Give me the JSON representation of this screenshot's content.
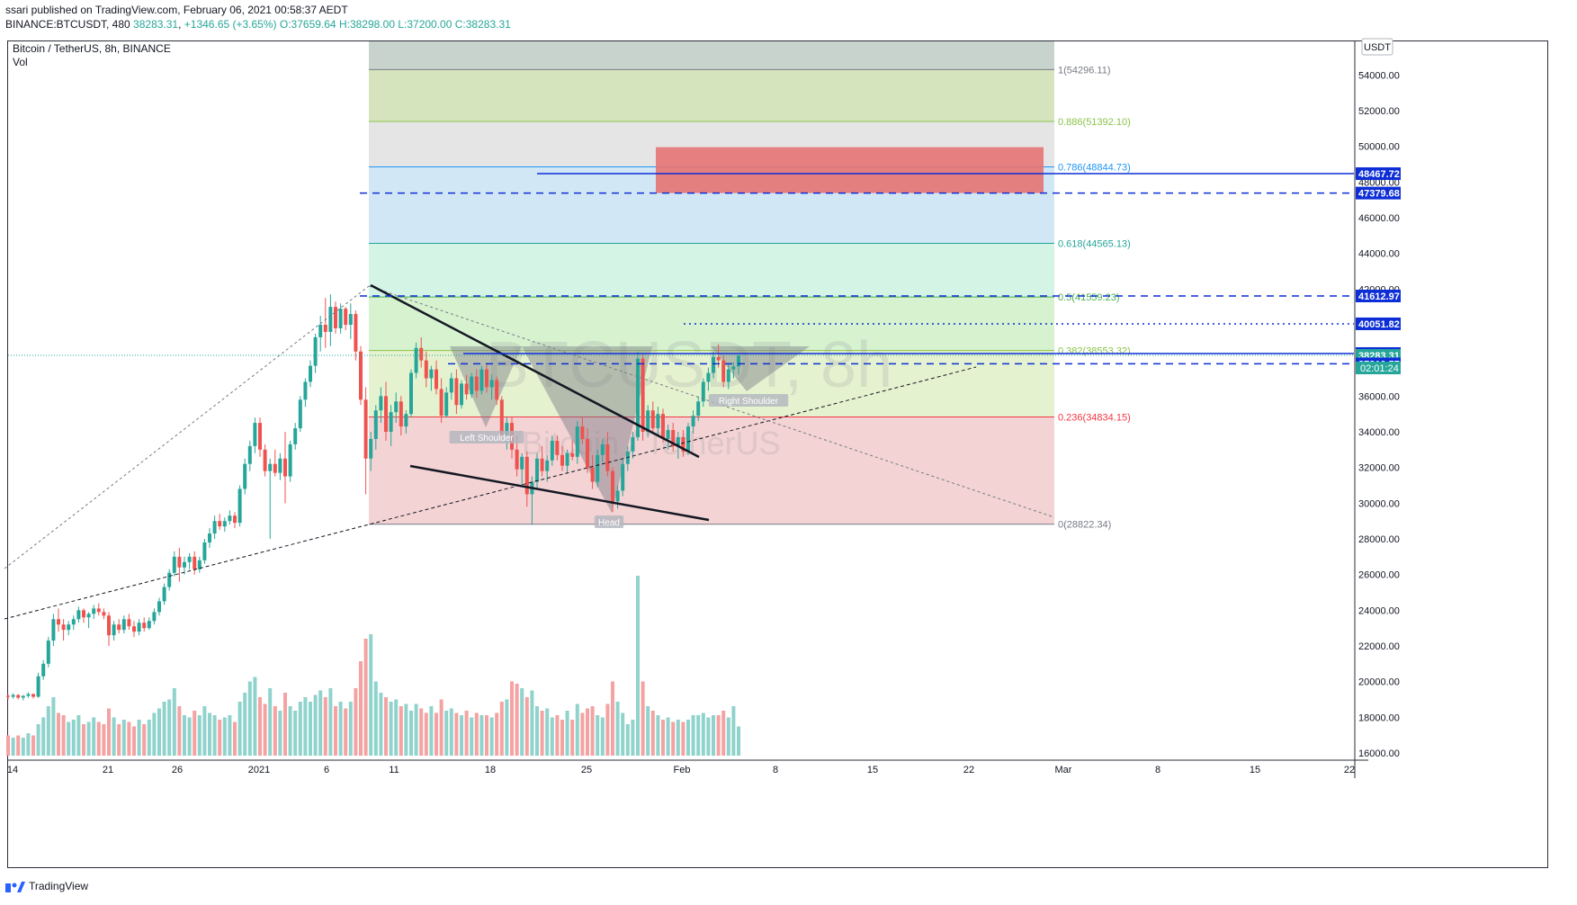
{
  "header": {
    "published": "ssari published on TradingView.com, February 06, 2021 00:58:37 AEDT",
    "symbol_line_prefix": "BINANCE:BTCUSDT, 480",
    "last": "38283.31",
    "change": "+1346.65 (+3.65%)",
    "o": "O:37659.64",
    "h": "H:38298.00",
    "l": "L:37200.00",
    "c": "C:38283.31"
  },
  "footer": {
    "brand": "TradingView"
  },
  "chart_data": {
    "type": "candlestick",
    "title": "Bitcoin / TetherUS, 8h, BINANCE",
    "subtitle": "Vol",
    "currency_label": "USDT",
    "watermark": "BTCUSDT, 8h",
    "watermark_sub": "Bitcoin / TetherUS",
    "y_ticks": [
      16000,
      18000,
      20000,
      22000,
      24000,
      26000,
      28000,
      30000,
      32000,
      34000,
      36000,
      38000,
      40000,
      42000,
      44000,
      46000,
      48000,
      50000,
      52000,
      54000
    ],
    "y_tick_labels": [
      "16000.00",
      "18000.00",
      "20000.00",
      "22000.00",
      "24000.00",
      "26000.00",
      "28000.00",
      "30000.00",
      "32000.00",
      "34000.00",
      "36000.00",
      "38000.00",
      "40000.00",
      "42000.00",
      "44000.00",
      "46000.00",
      "48000.00",
      "50000.00",
      "52000.00",
      "54000.00"
    ],
    "x_labels": [
      "14",
      "21",
      "26",
      "2021",
      "6",
      "11",
      "18",
      "25",
      "Feb",
      "8",
      "15",
      "22",
      "Mar",
      "8",
      "15",
      "22"
    ],
    "price_labels": [
      {
        "value": 48467.72,
        "label": "48467.72",
        "color": "#0d2ed6"
      },
      {
        "value": 47379.68,
        "label": "47379.68",
        "color": "#0d2ed6"
      },
      {
        "value": 41612.97,
        "label": "41612.97",
        "color": "#0d2ed6"
      },
      {
        "value": 40051.82,
        "label": "40051.82",
        "color": "#0d2ed6"
      },
      {
        "value": 38387.83,
        "label": "38387.83",
        "color": "#0d2ed6"
      },
      {
        "value": 38283.31,
        "label": "38283.31",
        "color": "#26a69a"
      },
      {
        "value": 37810.57,
        "label": "37810.57",
        "color": "#0d2ed6"
      }
    ],
    "countdown": "02:01:24",
    "fib_levels": [
      {
        "ratio": "1",
        "value": 54296.11,
        "label": "1(54296.11)",
        "color": "#787b86"
      },
      {
        "ratio": "0.886",
        "value": 51392.1,
        "label": "0.886(51392.10)",
        "color": "#8bc34a"
      },
      {
        "ratio": "0.786",
        "value": 48844.73,
        "label": "0.786(48844.73)",
        "color": "#2196f3"
      },
      {
        "ratio": "0.618",
        "value": 44565.13,
        "label": "0.618(44565.13)",
        "color": "#26a69a"
      },
      {
        "ratio": "0.5",
        "value": 41559.23,
        "label": "0.5(41559.23)",
        "color": "#4caf50"
      },
      {
        "ratio": "0.382",
        "value": 38553.32,
        "label": "0.382(38553.32)",
        "color": "#8bc34a"
      },
      {
        "ratio": "0.236",
        "value": 34834.15,
        "label": "0.236(34834.15)",
        "color": "#f23645"
      },
      {
        "ratio": "0",
        "value": 28822.34,
        "label": "0(28822.34)",
        "color": "#787b86"
      }
    ],
    "pattern_labels": {
      "left_shoulder": "Left Shoulder",
      "head": "Head",
      "right_shoulder": "Right Shoulder"
    },
    "candles": [
      [
        19200,
        19300,
        19000,
        19150
      ],
      [
        19150,
        19350,
        19050,
        19250
      ],
      [
        19250,
        19300,
        19000,
        19100
      ],
      [
        19100,
        19250,
        18950,
        19200
      ],
      [
        19200,
        19400,
        19100,
        19300
      ],
      [
        19300,
        19350,
        19050,
        19150
      ],
      [
        19150,
        20500,
        19100,
        20300
      ],
      [
        20300,
        21200,
        20100,
        21000
      ],
      [
        21000,
        22500,
        20800,
        22300
      ],
      [
        22300,
        23800,
        22000,
        23500
      ],
      [
        23500,
        24100,
        22800,
        23200
      ],
      [
        23200,
        23500,
        22300,
        22900
      ],
      [
        22900,
        23400,
        22600,
        23200
      ],
      [
        23200,
        23700,
        22900,
        23500
      ],
      [
        23500,
        24200,
        23300,
        24000
      ],
      [
        24000,
        24100,
        23300,
        23600
      ],
      [
        23600,
        23900,
        23000,
        23800
      ],
      [
        23800,
        24300,
        23500,
        24100
      ],
      [
        24100,
        24400,
        23700,
        23900
      ],
      [
        23900,
        24100,
        23500,
        23700
      ],
      [
        23700,
        23900,
        22000,
        22600
      ],
      [
        22600,
        23400,
        22300,
        23200
      ],
      [
        23200,
        23500,
        22700,
        22900
      ],
      [
        22900,
        23700,
        22700,
        23500
      ],
      [
        23500,
        23800,
        22900,
        23100
      ],
      [
        23100,
        23400,
        22500,
        22800
      ],
      [
        22800,
        23500,
        22600,
        23300
      ],
      [
        23300,
        23600,
        22800,
        23000
      ],
      [
        23000,
        23600,
        22900,
        23400
      ],
      [
        23400,
        24100,
        23200,
        23900
      ],
      [
        23900,
        24700,
        23700,
        24500
      ],
      [
        24500,
        25500,
        24300,
        25300
      ],
      [
        25300,
        26300,
        25100,
        26100
      ],
      [
        26100,
        27300,
        25900,
        27000
      ],
      [
        27000,
        27500,
        25600,
        26400
      ],
      [
        26400,
        27000,
        26000,
        26700
      ],
      [
        26700,
        27200,
        26300,
        27000
      ],
      [
        27000,
        27300,
        26000,
        26300
      ],
      [
        26300,
        27000,
        26100,
        26800
      ],
      [
        26800,
        28000,
        26600,
        27800
      ],
      [
        27800,
        28600,
        27500,
        28300
      ],
      [
        28300,
        29300,
        28000,
        29000
      ],
      [
        29000,
        29400,
        28500,
        28700
      ],
      [
        28700,
        29200,
        28400,
        29000
      ],
      [
        29000,
        29600,
        28800,
        29300
      ],
      [
        29300,
        29500,
        28600,
        28900
      ],
      [
        28900,
        31000,
        28700,
        30800
      ],
      [
        30800,
        32500,
        30500,
        32200
      ],
      [
        32200,
        33500,
        31800,
        33200
      ],
      [
        33200,
        34800,
        32800,
        34500
      ],
      [
        34500,
        34800,
        32600,
        33000
      ],
      [
        33000,
        33300,
        31500,
        31800
      ],
      [
        31800,
        32500,
        28000,
        32200
      ],
      [
        32200,
        33000,
        31500,
        31700
      ],
      [
        31700,
        32800,
        31300,
        32500
      ],
      [
        32500,
        34000,
        30000,
        31500
      ],
      [
        31500,
        33500,
        31200,
        33300
      ],
      [
        33300,
        34500,
        33000,
        34200
      ],
      [
        34200,
        36000,
        34000,
        35800
      ],
      [
        35800,
        37000,
        35400,
        36800
      ],
      [
        36800,
        38000,
        36500,
        37700
      ],
      [
        37700,
        39500,
        37300,
        39300
      ],
      [
        39300,
        40500,
        38500,
        40000
      ],
      [
        40000,
        41500,
        38700,
        39600
      ],
      [
        39600,
        41700,
        38800,
        41000
      ],
      [
        41000,
        41300,
        39500,
        39800
      ],
      [
        39800,
        41200,
        39500,
        40900
      ],
      [
        40900,
        41000,
        39700,
        40000
      ],
      [
        40000,
        41200,
        39200,
        40600
      ],
      [
        40600,
        40800,
        38000,
        38500
      ],
      [
        38500,
        38800,
        35500,
        35800
      ],
      [
        35800,
        36500,
        30500,
        32500
      ],
      [
        32500,
        34000,
        31800,
        33600
      ],
      [
        33600,
        35500,
        33000,
        35200
      ],
      [
        35200,
        36500,
        34500,
        36000
      ],
      [
        36000,
        36800,
        33500,
        34000
      ],
      [
        34000,
        35500,
        33200,
        35100
      ],
      [
        35100,
        36200,
        34500,
        35700
      ],
      [
        35700,
        36000,
        33800,
        34300
      ],
      [
        34300,
        35200,
        33900,
        35000
      ],
      [
        35000,
        37500,
        34800,
        37300
      ],
      [
        37300,
        39000,
        37000,
        38700
      ],
      [
        38700,
        39300,
        37600,
        38000
      ],
      [
        38000,
        38500,
        36500,
        37000
      ],
      [
        37000,
        37700,
        36300,
        37500
      ],
      [
        37500,
        38000,
        36100,
        36400
      ],
      [
        36400,
        37000,
        34500,
        34900
      ],
      [
        34900,
        36500,
        34800,
        36200
      ],
      [
        36200,
        37300,
        35800,
        37000
      ],
      [
        37000,
        37500,
        35000,
        35500
      ],
      [
        35500,
        36900,
        35300,
        36700
      ],
      [
        36700,
        37200,
        35800,
        36100
      ],
      [
        36100,
        37300,
        35900,
        37100
      ],
      [
        37100,
        37500,
        35900,
        36300
      ],
      [
        36300,
        37700,
        36100,
        37500
      ],
      [
        37500,
        37800,
        36200,
        36500
      ],
      [
        36500,
        37200,
        35800,
        36900
      ],
      [
        36900,
        37100,
        35500,
        35800
      ],
      [
        35800,
        36000,
        33500,
        33800
      ],
      [
        33800,
        34800,
        33000,
        34500
      ],
      [
        34500,
        34800,
        32500,
        33000
      ],
      [
        33000,
        33800,
        31500,
        31900
      ],
      [
        31900,
        32800,
        31000,
        32600
      ],
      [
        32600,
        32900,
        29800,
        30500
      ],
      [
        30500,
        31500,
        28800,
        31200
      ],
      [
        31200,
        32800,
        30800,
        32500
      ],
      [
        32500,
        33200,
        31500,
        31800
      ],
      [
        31800,
        32700,
        31200,
        32400
      ],
      [
        32400,
        33800,
        32100,
        33500
      ],
      [
        33500,
        33800,
        32400,
        32700
      ],
      [
        32700,
        33200,
        31800,
        32100
      ],
      [
        32100,
        33000,
        31700,
        32800
      ],
      [
        32800,
        33500,
        32400,
        32600
      ],
      [
        32600,
        34600,
        32200,
        34300
      ],
      [
        34300,
        34800,
        33300,
        33600
      ],
      [
        33600,
        34200,
        31700,
        32000
      ],
      [
        32000,
        32700,
        30800,
        31200
      ],
      [
        31200,
        33000,
        30900,
        32700
      ],
      [
        32700,
        33600,
        32300,
        33300
      ],
      [
        33300,
        34000,
        31500,
        31800
      ],
      [
        31800,
        32000,
        29500,
        30100
      ],
      [
        30100,
        31000,
        29700,
        30700
      ],
      [
        30700,
        32500,
        30400,
        32200
      ],
      [
        32200,
        33200,
        31800,
        32900
      ],
      [
        32900,
        34000,
        32500,
        33700
      ],
      [
        33700,
        38500,
        33500,
        38100
      ],
      [
        38100,
        38400,
        33500,
        34000
      ],
      [
        34000,
        35500,
        33700,
        35200
      ],
      [
        35200,
        35700,
        33900,
        34200
      ],
      [
        34200,
        35400,
        33800,
        35000
      ],
      [
        35000,
        35300,
        33400,
        33600
      ],
      [
        33600,
        34400,
        33000,
        34100
      ],
      [
        34100,
        34500,
        32900,
        33200
      ],
      [
        33200,
        34000,
        32500,
        33700
      ],
      [
        33700,
        34100,
        32600,
        32900
      ],
      [
        32900,
        34500,
        32700,
        34300
      ],
      [
        34300,
        35200,
        33900,
        34900
      ],
      [
        34900,
        36000,
        34600,
        35700
      ],
      [
        35700,
        37000,
        35400,
        36800
      ],
      [
        36800,
        37600,
        36300,
        37300
      ],
      [
        37300,
        38500,
        37000,
        38200
      ],
      [
        38200,
        38900,
        37600,
        38000
      ],
      [
        38000,
        38300,
        36500,
        36800
      ],
      [
        36800,
        37800,
        36400,
        37500
      ],
      [
        37500,
        37900,
        37000,
        37660
      ],
      [
        37660,
        38300,
        37200,
        38283
      ]
    ],
    "volumes": [
      9,
      8,
      9,
      8,
      10,
      9,
      14,
      17,
      22,
      26,
      19,
      18,
      15,
      16,
      18,
      14,
      15,
      17,
      15,
      14,
      21,
      17,
      14,
      16,
      15,
      13,
      16,
      14,
      16,
      19,
      21,
      24,
      25,
      30,
      22,
      18,
      17,
      20,
      18,
      22,
      19,
      18,
      16,
      17,
      18,
      15,
      24,
      28,
      33,
      35,
      26,
      23,
      30,
      22,
      20,
      28,
      22,
      20,
      24,
      26,
      24,
      27,
      29,
      26,
      30,
      22,
      24,
      21,
      24,
      30,
      42,
      52,
      54,
      33,
      28,
      26,
      24,
      25,
      22,
      23,
      20,
      23,
      21,
      19,
      22,
      19,
      25,
      20,
      21,
      19,
      18,
      20,
      17,
      19,
      18,
      18,
      17,
      19,
      24,
      25,
      33,
      32,
      30,
      26,
      29,
      22,
      20,
      21,
      17,
      18,
      16,
      20,
      16,
      23,
      19,
      21,
      22,
      18,
      17,
      23,
      33,
      24,
      19,
      14,
      16,
      80,
      33,
      22,
      20,
      18,
      16,
      17,
      15,
      16,
      15,
      16,
      18,
      18,
      19,
      17,
      18,
      18,
      20,
      17,
      22,
      13
    ],
    "volume_colors_rule": "green if close>=open else red"
  }
}
